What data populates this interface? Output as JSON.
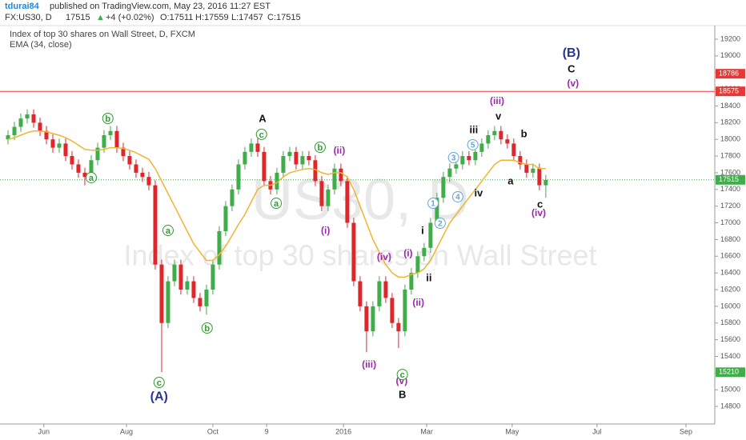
{
  "header": {
    "author": "tdurai84",
    "published": "published on TradingView.com, May 23, 2016 11:27 EST",
    "symbol": "FX:US30, D",
    "last": "17515",
    "arrow": "▲",
    "change": "+4 (+0.02%)",
    "open": "O:17511",
    "high": "H:17559",
    "low": "L:17457",
    "close": "C:17515"
  },
  "chart_data": {
    "type": "candlestick",
    "title": "Index of top 30 shares on Wall Street, D, FXCM",
    "indicator": "EMA (34, close)",
    "watermark": [
      "US30, D",
      "Index of top 30 shares on Wall Street"
    ],
    "up_color": "#3fae49",
    "down_color": "#e0262b",
    "ema_color": "#f0b52e",
    "xlim": [
      -1.25,
      110.4
    ],
    "xticks": [
      {
        "value": 5.6,
        "label": "Jun"
      },
      {
        "value": 18.5,
        "label": "Aug"
      },
      {
        "value": 32,
        "label": "Oct"
      },
      {
        "value": 40.4,
        "label": "9"
      },
      {
        "value": 52.4,
        "label": "2016"
      },
      {
        "value": 65.4,
        "label": "Mar"
      },
      {
        "value": 78.75,
        "label": "May"
      },
      {
        "value": 92,
        "label": "Jul"
      },
      {
        "value": 105.9,
        "label": "Sep"
      }
    ],
    "ylim": [
      14590,
      19334
    ],
    "yticks": [
      14800,
      15000,
      15200,
      15400,
      15600,
      15800,
      16000,
      16200,
      16400,
      16600,
      16800,
      17000,
      17200,
      17400,
      17600,
      17800,
      18000,
      18200,
      18400,
      18600,
      18800,
      19000,
      19200
    ],
    "open": [
      18000,
      18050,
      18150,
      18250,
      18300,
      18200,
      18100,
      18000,
      17900,
      17950,
      17800,
      17700,
      17600,
      17550,
      17750,
      17900,
      18050,
      18100,
      17900,
      17800,
      17700,
      17600,
      17550,
      17450,
      16500,
      15800,
      16300,
      16500,
      16200,
      16300,
      16100,
      16000,
      16200,
      16500,
      16900,
      17200,
      17400,
      17700,
      17850,
      17950,
      17850,
      17500,
      17400,
      17600,
      17800,
      17850,
      17700,
      17800,
      17750,
      17500,
      17200,
      17400,
      17650,
      17500,
      17000,
      16300,
      16000,
      15700,
      16000,
      16300,
      16100,
      15800,
      15700,
      16200,
      16400,
      16600,
      16700,
      17000,
      17300,
      17550,
      17650,
      17700,
      17800,
      17750,
      17850,
      17950,
      18050,
      18100,
      18000,
      17950,
      17800,
      17700,
      17600,
      17650,
      17450
    ],
    "high": [
      18110,
      18210,
      18310,
      18360,
      18360,
      18260,
      18160,
      18060,
      18010,
      18010,
      17860,
      17760,
      17660,
      17810,
      17960,
      18110,
      18160,
      18160,
      17960,
      17860,
      17760,
      17660,
      17610,
      17510,
      16560,
      16360,
      16560,
      16560,
      16360,
      16360,
      16160,
      16260,
      16560,
      16960,
      17260,
      17460,
      17760,
      17910,
      18010,
      18010,
      17910,
      17560,
      17660,
      17860,
      17910,
      17910,
      17860,
      17860,
      17810,
      17560,
      17460,
      17710,
      17710,
      17560,
      17060,
      16360,
      16060,
      16060,
      16360,
      16360,
      16160,
      15860,
      16260,
      16460,
      16660,
      16760,
      17060,
      17360,
      17610,
      17710,
      17760,
      17860,
      17860,
      17910,
      18010,
      18110,
      18160,
      18160,
      18060,
      18010,
      17860,
      17760,
      17710,
      17710,
      17575
    ],
    "low": [
      17940,
      17990,
      18090,
      18190,
      18140,
      18040,
      17940,
      17840,
      17840,
      17740,
      17640,
      17540,
      17450,
      17490,
      17690,
      17840,
      17990,
      17840,
      17740,
      17640,
      17540,
      17490,
      17390,
      16440,
      15210,
      15740,
      16240,
      16140,
      16140,
      16040,
      15940,
      15900,
      16140,
      16440,
      16840,
      17140,
      17340,
      17640,
      17790,
      17790,
      17440,
      17340,
      17340,
      17540,
      17740,
      17640,
      17640,
      17690,
      17440,
      17140,
      17140,
      17340,
      17440,
      16940,
      16240,
      15940,
      15450,
      15640,
      15940,
      16040,
      15740,
      15500,
      15640,
      16140,
      16340,
      16540,
      16640,
      16940,
      17240,
      17490,
      17590,
      17640,
      17690,
      17690,
      17790,
      17890,
      17990,
      17940,
      17890,
      17740,
      17640,
      17540,
      17540,
      17390,
      17300
    ],
    "close": [
      18050,
      18150,
      18250,
      18300,
      18200,
      18100,
      18000,
      17900,
      17950,
      17800,
      17700,
      17600,
      17550,
      17750,
      17900,
      18050,
      18100,
      17900,
      17800,
      17700,
      17600,
      17550,
      17450,
      16500,
      15800,
      16300,
      16500,
      16200,
      16300,
      16100,
      16000,
      16200,
      16500,
      16900,
      17200,
      17400,
      17700,
      17850,
      17950,
      17850,
      17500,
      17400,
      17600,
      17800,
      17850,
      17700,
      17800,
      17750,
      17500,
      17200,
      17400,
      17650,
      17500,
      17000,
      16300,
      16000,
      15700,
      16000,
      16300,
      16100,
      15800,
      15700,
      16200,
      16400,
      16600,
      16700,
      17000,
      17300,
      17550,
      17650,
      17700,
      17800,
      17750,
      17850,
      17950,
      18050,
      18100,
      18000,
      17950,
      17800,
      17700,
      17600,
      17650,
      17450,
      17515
    ],
    "ema": [
      18000,
      18020,
      18050,
      18080,
      18100,
      18100,
      18090,
      18070,
      18050,
      18020,
      17980,
      17930,
      17880,
      17870,
      17870,
      17880,
      17900,
      17900,
      17890,
      17870,
      17840,
      17800,
      17760,
      17650,
      17500,
      17350,
      17200,
      17050,
      16900,
      16750,
      16650,
      16550,
      16550,
      16620,
      16720,
      16850,
      16980,
      17100,
      17250,
      17400,
      17450,
      17450,
      17480,
      17550,
      17600,
      17620,
      17640,
      17650,
      17640,
      17600,
      17580,
      17600,
      17600,
      17550,
      17400,
      17200,
      17000,
      16800,
      16650,
      16500,
      16400,
      16350,
      16350,
      16380,
      16400,
      16450,
      16550,
      16700,
      16850,
      17000,
      17100,
      17200,
      17300,
      17400,
      17500,
      17600,
      17700,
      17750,
      17750,
      17750,
      17720,
      17700,
      17700,
      17650,
      17650
    ],
    "hlines": [
      {
        "value": 18575,
        "color": "#e53935",
        "style": "solid"
      },
      {
        "value": 17515,
        "color": "#3fae49",
        "style": "dotted"
      }
    ],
    "price_labels": [
      {
        "value": 18786,
        "color": "#e53935"
      },
      {
        "value": 18575,
        "color": "#e53935"
      },
      {
        "value": 17515,
        "color": "#3fae49"
      },
      {
        "value": 15210,
        "color": "#3fae49"
      }
    ],
    "annotations": [
      {
        "text": "(B)",
        "x": 88,
        "y": 19037,
        "style": "navy"
      },
      {
        "text": "C",
        "x": 88,
        "y": 18845,
        "style": "black"
      },
      {
        "text": "(v)",
        "x": 88.25,
        "y": 18673,
        "style": "purple"
      },
      {
        "text": "(iii)",
        "x": 76.4,
        "y": 18462,
        "style": "purple"
      },
      {
        "text": "v",
        "x": 76.6,
        "y": 18280,
        "style": "black"
      },
      {
        "text": "iii",
        "x": 72.75,
        "y": 18117,
        "style": "black"
      },
      {
        "text": "b",
        "x": 80.6,
        "y": 18069,
        "style": "black"
      },
      {
        "text": "3",
        "x": 69.6,
        "y": 17781,
        "style": "circle-blue"
      },
      {
        "text": "5",
        "x": 72.6,
        "y": 17935,
        "style": "circle-blue"
      },
      {
        "text": "a",
        "x": 78.5,
        "y": 17503,
        "style": "black"
      },
      {
        "text": "iv",
        "x": 73.5,
        "y": 17360,
        "style": "black"
      },
      {
        "text": "4",
        "x": 70.25,
        "y": 17312,
        "style": "circle-blue"
      },
      {
        "text": "1",
        "x": 66.4,
        "y": 17235,
        "style": "circle-blue"
      },
      {
        "text": "2",
        "x": 67.5,
        "y": 16995,
        "style": "circle-blue"
      },
      {
        "text": "c",
        "x": 83.1,
        "y": 17225,
        "style": "black"
      },
      {
        "text": "(iv)",
        "x": 82.9,
        "y": 17120,
        "style": "purple"
      },
      {
        "text": "i",
        "x": 64.75,
        "y": 16909,
        "style": "black"
      },
      {
        "text": "ii",
        "x": 65.75,
        "y": 16343,
        "style": "black"
      },
      {
        "text": "(i)",
        "x": 62.5,
        "y": 16640,
        "style": "purple"
      },
      {
        "text": "(iv)",
        "x": 58.75,
        "y": 16593,
        "style": "purple"
      },
      {
        "text": "(ii)",
        "x": 64.1,
        "y": 16046,
        "style": "purple"
      },
      {
        "text": "(iii)",
        "x": 56.4,
        "y": 15308,
        "style": "purple"
      },
      {
        "text": "(v)",
        "x": 61.5,
        "y": 15107,
        "style": "purple"
      },
      {
        "text": "c",
        "x": 61.6,
        "y": 15183,
        "style": "circle-green"
      },
      {
        "text": "B",
        "x": 61.6,
        "y": 14944,
        "style": "black"
      },
      {
        "text": "(ii)",
        "x": 51.75,
        "y": 17868,
        "style": "purple"
      },
      {
        "text": "(i)",
        "x": 49.6,
        "y": 16909,
        "style": "purple"
      },
      {
        "text": "b",
        "x": 48.75,
        "y": 17906,
        "style": "circle-green"
      },
      {
        "text": "c",
        "x": 39.6,
        "y": 18060,
        "style": "circle-green"
      },
      {
        "text": "A",
        "x": 39.75,
        "y": 18251,
        "style": "black"
      },
      {
        "text": "a",
        "x": 41.9,
        "y": 17235,
        "style": "circle-green"
      },
      {
        "text": "b",
        "x": 15.6,
        "y": 18251,
        "style": "circle-green"
      },
      {
        "text": "a",
        "x": 13,
        "y": 17542,
        "style": "circle-green"
      },
      {
        "text": "a",
        "x": 25,
        "y": 16909,
        "style": "circle-green"
      },
      {
        "text": "b",
        "x": 31.1,
        "y": 15740,
        "style": "circle-green"
      },
      {
        "text": "c",
        "x": 23.6,
        "y": 15088,
        "style": "circle-green"
      },
      {
        "text": "(A)",
        "x": 23.6,
        "y": 14925,
        "style": "navy"
      }
    ]
  }
}
